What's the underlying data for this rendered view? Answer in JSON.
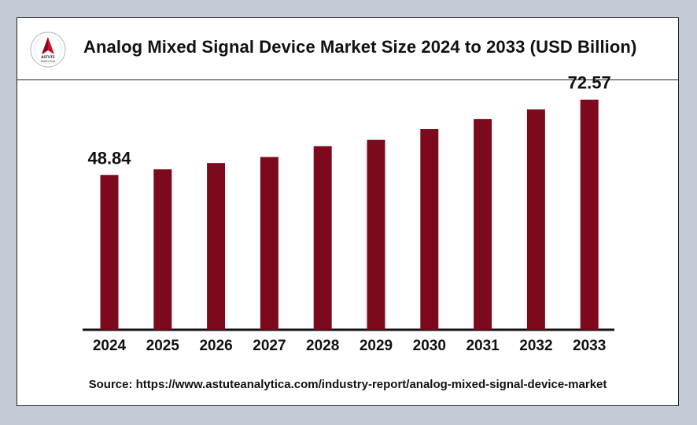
{
  "header": {
    "title": "Analog Mixed Signal Device Market Size 2024 to 2033 (USD Billion)",
    "logo": {
      "icon": "astute-analytica-logo-icon",
      "text": "ASTUTE ANALYTICA"
    }
  },
  "chart_data": {
    "type": "bar",
    "title": "Analog Mixed Signal Device Market Size 2024 to 2033 (USD Billion)",
    "categories": [
      "2024",
      "2025",
      "2026",
      "2027",
      "2028",
      "2029",
      "2030",
      "2031",
      "2032",
      "2033"
    ],
    "values": [
      48.84,
      50.6,
      52.6,
      54.5,
      57.9,
      59.9,
      63.3,
      66.5,
      69.5,
      72.57
    ],
    "value_labels": {
      "0": "48.84",
      "9": "72.57"
    },
    "bar_color": "#7d0a1c",
    "xlabel": "",
    "ylabel": "",
    "ylim": [
      0,
      76
    ],
    "grid": false,
    "legend": "none"
  },
  "footer": {
    "source": "Source: https://www.astuteanalytica.com/industry-report/analog-mixed-signal-device-market"
  }
}
